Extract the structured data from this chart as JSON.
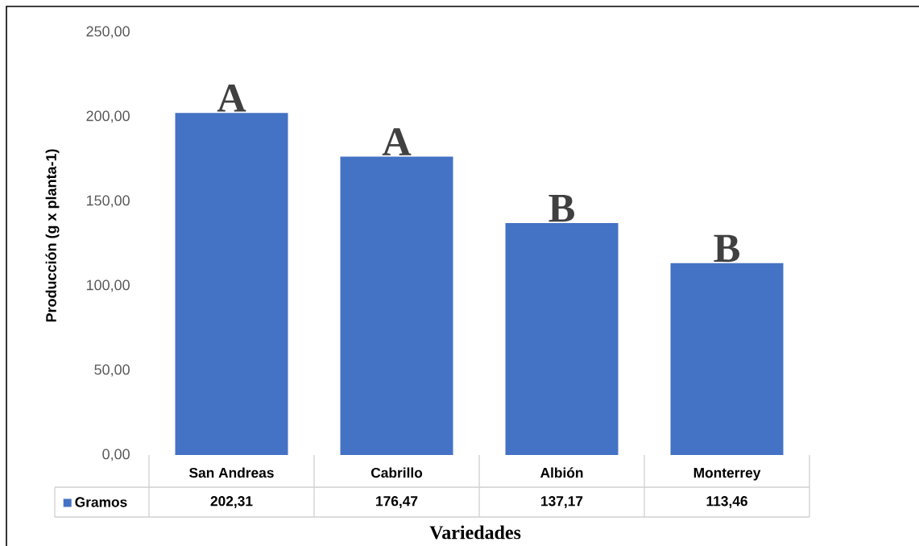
{
  "chart_data": {
    "type": "bar",
    "xlabel": "Variedades",
    "ylabel": "Producción (g x planta-1)",
    "categories": [
      "San Andreas",
      "Cabrillo",
      "Albión",
      "Monterrey"
    ],
    "series": [
      {
        "name": "Gramos",
        "color": "#4472c4",
        "values": [
          202.31,
          176.47,
          137.17,
          113.46
        ],
        "value_labels": [
          "202,31",
          "176,47",
          "137,17",
          "113,46"
        ]
      }
    ],
    "ylim": [
      0,
      250
    ],
    "yticks": [
      {
        "value": 0,
        "label": "0,00"
      },
      {
        "value": 50,
        "label": "50,00"
      },
      {
        "value": 100,
        "label": "100,00"
      },
      {
        "value": 150,
        "label": "150,00"
      },
      {
        "value": 200,
        "label": "200,00"
      },
      {
        "value": 250,
        "label": "250,00"
      }
    ],
    "annotations": [
      {
        "text": "A",
        "x": "San Andreas",
        "y": 202.31
      },
      {
        "text": "A",
        "x": "Cabrillo",
        "y": 176.47
      },
      {
        "text": "B",
        "x": "Albión",
        "y": 137.17
      },
      {
        "text": "B",
        "x": "Monterrey",
        "y": 113.46
      }
    ],
    "grid": false,
    "legend": "bottom"
  }
}
